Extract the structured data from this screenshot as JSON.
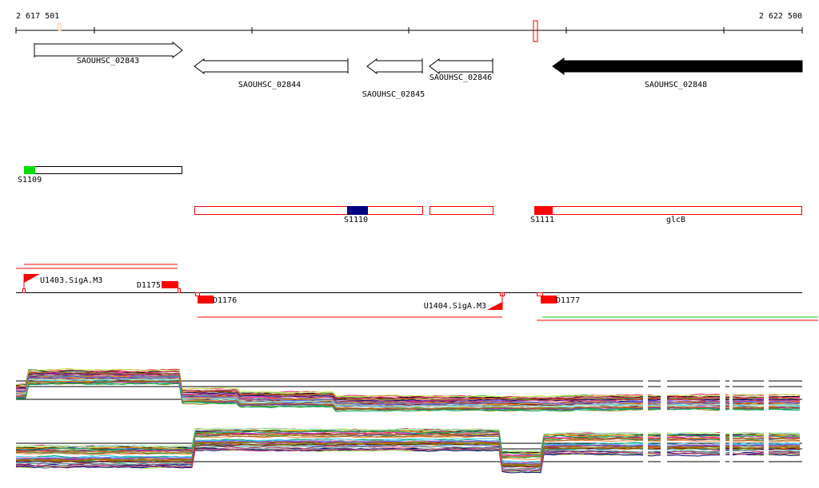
{
  "ruler": {
    "start_label": "2 617 501",
    "end_label": "2 622 500"
  },
  "genes": [
    {
      "name": "SAOUHSC_02843",
      "strand": "+",
      "filled": false
    },
    {
      "name": "SAOUHSC_02844",
      "strand": "-",
      "filled": false
    },
    {
      "name": "SAOUHSC_02845",
      "strand": "-",
      "filled": false
    },
    {
      "name": "SAOUHSC_02846",
      "strand": "-",
      "filled": false
    },
    {
      "name": "SAOUHSC_02848",
      "strand": "-",
      "filled": true
    }
  ],
  "transcripts": {
    "s1109": "S1109",
    "s1110": "S1110",
    "s1111": "S1111",
    "glcb": "glcB"
  },
  "features": {
    "u1403": "U1403.SigA.M3",
    "d1175": "D1175",
    "d1176": "D1176",
    "u1404": "U1404.SigA.M3",
    "d1177": "D1177"
  },
  "colors": {
    "red": "#ff0000",
    "green": "#00dd00",
    "navy": "#000080",
    "black": "#000000"
  }
}
